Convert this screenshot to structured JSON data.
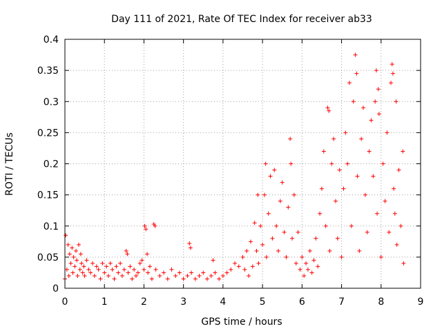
{
  "chart_data": {
    "type": "scatter",
    "title": "Day 111 of 2021, Rate Of TEC Index for receiver ab33",
    "xlabel": "GPS time / hours",
    "ylabel": "ROTI / TECUs",
    "xlim": [
      0,
      9
    ],
    "ylim": [
      0,
      0.4
    ],
    "xticks": [
      "0",
      "1",
      "2",
      "3",
      "4",
      "5",
      "6",
      "7",
      "8",
      "9"
    ],
    "yticks": [
      "0",
      "0.05",
      "0.1",
      "0.15",
      "0.2",
      "0.25",
      "0.3",
      "0.35",
      "0.4"
    ],
    "grid": true,
    "marker": "+",
    "series_color": "#ff0000",
    "series": [
      {
        "name": "ROTI",
        "points": [
          [
            0.0,
            0.015
          ],
          [
            0.02,
            0.085
          ],
          [
            0.05,
            0.03
          ],
          [
            0.08,
            0.07
          ],
          [
            0.1,
            0.02
          ],
          [
            0.12,
            0.055
          ],
          [
            0.15,
            0.04
          ],
          [
            0.18,
            0.065
          ],
          [
            0.2,
            0.025
          ],
          [
            0.22,
            0.05
          ],
          [
            0.25,
            0.035
          ],
          [
            0.28,
            0.06
          ],
          [
            0.3,
            0.045
          ],
          [
            0.32,
            0.02
          ],
          [
            0.35,
            0.07
          ],
          [
            0.38,
            0.03
          ],
          [
            0.4,
            0.055
          ],
          [
            0.42,
            0.04
          ],
          [
            0.45,
            0.025
          ],
          [
            0.48,
            0.035
          ],
          [
            0.5,
            0.02
          ],
          [
            0.55,
            0.045
          ],
          [
            0.6,
            0.03
          ],
          [
            0.65,
            0.025
          ],
          [
            0.7,
            0.04
          ],
          [
            0.75,
            0.02
          ],
          [
            0.8,
            0.035
          ],
          [
            0.85,
            0.03
          ],
          [
            0.9,
            0.015
          ],
          [
            0.95,
            0.04
          ],
          [
            1.0,
            0.025
          ],
          [
            1.05,
            0.035
          ],
          [
            1.1,
            0.02
          ],
          [
            1.15,
            0.04
          ],
          [
            1.2,
            0.03
          ],
          [
            1.25,
            0.015
          ],
          [
            1.3,
            0.035
          ],
          [
            1.35,
            0.025
          ],
          [
            1.4,
            0.04
          ],
          [
            1.45,
            0.02
          ],
          [
            1.5,
            0.03
          ],
          [
            1.55,
            0.06
          ],
          [
            1.58,
            0.055
          ],
          [
            1.6,
            0.025
          ],
          [
            1.65,
            0.035
          ],
          [
            1.7,
            0.015
          ],
          [
            1.75,
            0.03
          ],
          [
            1.8,
            0.02
          ],
          [
            1.85,
            0.025
          ],
          [
            1.9,
            0.04
          ],
          [
            1.95,
            0.045
          ],
          [
            2.0,
            0.03
          ],
          [
            2.02,
            0.1
          ],
          [
            2.05,
            0.095
          ],
          [
            2.08,
            0.055
          ],
          [
            2.1,
            0.025
          ],
          [
            2.15,
            0.035
          ],
          [
            2.2,
            0.015
          ],
          [
            2.25,
            0.103
          ],
          [
            2.28,
            0.1
          ],
          [
            2.3,
            0.03
          ],
          [
            2.4,
            0.02
          ],
          [
            2.5,
            0.025
          ],
          [
            2.6,
            0.015
          ],
          [
            2.7,
            0.03
          ],
          [
            2.8,
            0.02
          ],
          [
            2.9,
            0.025
          ],
          [
            3.0,
            0.015
          ],
          [
            3.1,
            0.02
          ],
          [
            3.15,
            0.072
          ],
          [
            3.18,
            0.065
          ],
          [
            3.2,
            0.025
          ],
          [
            3.3,
            0.015
          ],
          [
            3.4,
            0.02
          ],
          [
            3.5,
            0.025
          ],
          [
            3.6,
            0.015
          ],
          [
            3.7,
            0.02
          ],
          [
            3.75,
            0.045
          ],
          [
            3.8,
            0.025
          ],
          [
            3.9,
            0.015
          ],
          [
            4.0,
            0.02
          ],
          [
            4.1,
            0.025
          ],
          [
            4.2,
            0.03
          ],
          [
            4.3,
            0.04
          ],
          [
            4.4,
            0.035
          ],
          [
            4.5,
            0.05
          ],
          [
            4.55,
            0.03
          ],
          [
            4.6,
            0.06
          ],
          [
            4.65,
            0.02
          ],
          [
            4.7,
            0.075
          ],
          [
            4.75,
            0.035
          ],
          [
            4.8,
            0.105
          ],
          [
            4.85,
            0.06
          ],
          [
            4.88,
            0.15
          ],
          [
            4.9,
            0.04
          ],
          [
            4.95,
            0.1
          ],
          [
            5.0,
            0.07
          ],
          [
            5.05,
            0.15
          ],
          [
            5.08,
            0.2
          ],
          [
            5.1,
            0.05
          ],
          [
            5.15,
            0.12
          ],
          [
            5.2,
            0.18
          ],
          [
            5.25,
            0.08
          ],
          [
            5.3,
            0.19
          ],
          [
            5.35,
            0.1
          ],
          [
            5.4,
            0.06
          ],
          [
            5.45,
            0.14
          ],
          [
            5.5,
            0.17
          ],
          [
            5.55,
            0.09
          ],
          [
            5.6,
            0.05
          ],
          [
            5.65,
            0.13
          ],
          [
            5.7,
            0.24
          ],
          [
            5.72,
            0.2
          ],
          [
            5.75,
            0.08
          ],
          [
            5.8,
            0.15
          ],
          [
            5.85,
            0.04
          ],
          [
            5.9,
            0.09
          ],
          [
            5.95,
            0.03
          ],
          [
            6.0,
            0.05
          ],
          [
            6.05,
            0.02
          ],
          [
            6.1,
            0.04
          ],
          [
            6.15,
            0.03
          ],
          [
            6.2,
            0.06
          ],
          [
            6.25,
            0.025
          ],
          [
            6.3,
            0.045
          ],
          [
            6.35,
            0.08
          ],
          [
            6.4,
            0.035
          ],
          [
            6.45,
            0.12
          ],
          [
            6.5,
            0.16
          ],
          [
            6.55,
            0.22
          ],
          [
            6.6,
            0.1
          ],
          [
            6.65,
            0.29
          ],
          [
            6.68,
            0.285
          ],
          [
            6.7,
            0.06
          ],
          [
            6.75,
            0.2
          ],
          [
            6.8,
            0.24
          ],
          [
            6.85,
            0.14
          ],
          [
            6.9,
            0.08
          ],
          [
            6.95,
            0.19
          ],
          [
            7.0,
            0.05
          ],
          [
            7.05,
            0.16
          ],
          [
            7.1,
            0.25
          ],
          [
            7.15,
            0.2
          ],
          [
            7.2,
            0.33
          ],
          [
            7.25,
            0.1
          ],
          [
            7.3,
            0.3
          ],
          [
            7.35,
            0.375
          ],
          [
            7.38,
            0.345
          ],
          [
            7.4,
            0.18
          ],
          [
            7.45,
            0.06
          ],
          [
            7.5,
            0.24
          ],
          [
            7.55,
            0.29
          ],
          [
            7.6,
            0.15
          ],
          [
            7.65,
            0.09
          ],
          [
            7.7,
            0.22
          ],
          [
            7.75,
            0.27
          ],
          [
            7.8,
            0.18
          ],
          [
            7.85,
            0.3
          ],
          [
            7.88,
            0.35
          ],
          [
            7.9,
            0.12
          ],
          [
            7.93,
            0.32
          ],
          [
            7.95,
            0.28
          ],
          [
            8.0,
            0.05
          ],
          [
            8.05,
            0.2
          ],
          [
            8.1,
            0.14
          ],
          [
            8.15,
            0.25
          ],
          [
            8.2,
            0.09
          ],
          [
            8.25,
            0.33
          ],
          [
            8.28,
            0.36
          ],
          [
            8.3,
            0.345
          ],
          [
            8.32,
            0.16
          ],
          [
            8.35,
            0.12
          ],
          [
            8.38,
            0.3
          ],
          [
            8.4,
            0.07
          ],
          [
            8.45,
            0.19
          ],
          [
            8.5,
            0.1
          ],
          [
            8.55,
            0.22
          ],
          [
            8.57,
            0.04
          ]
        ]
      }
    ]
  }
}
